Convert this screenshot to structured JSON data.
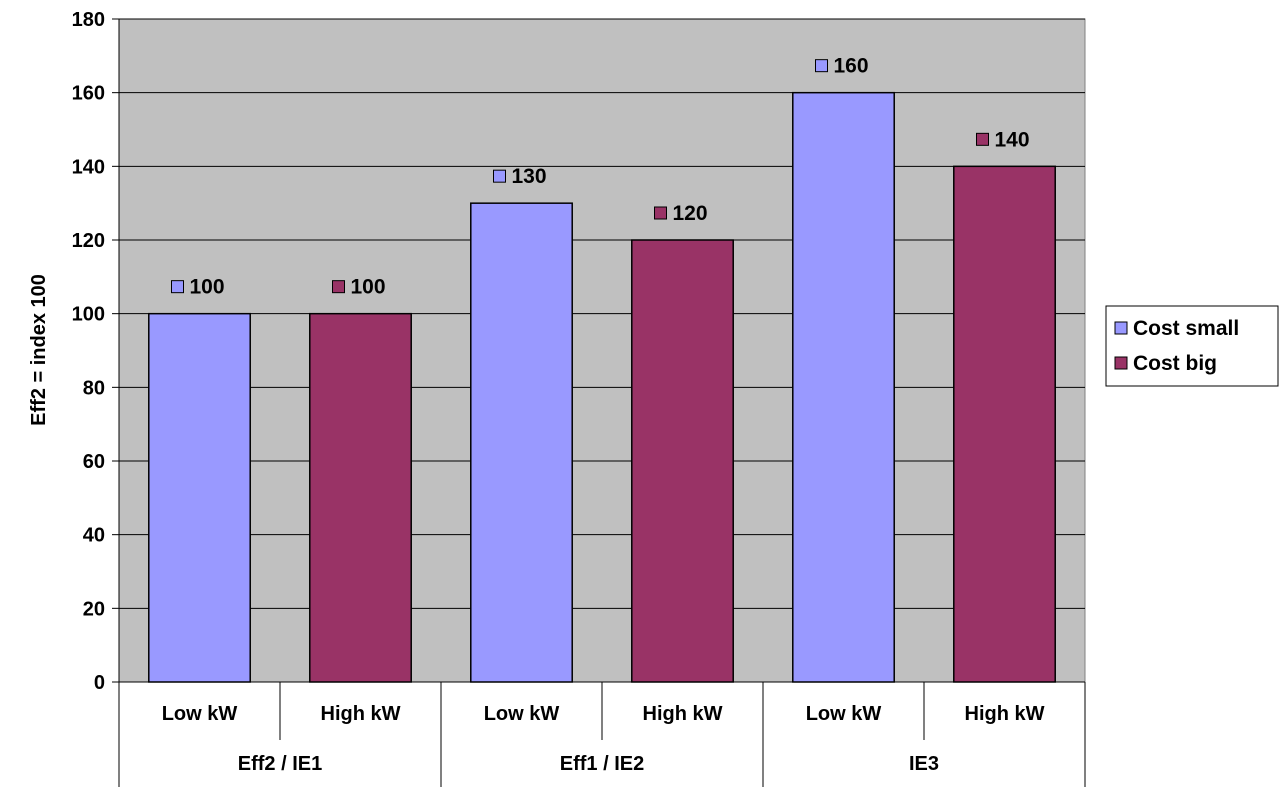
{
  "chart_data": {
    "type": "bar",
    "title": "",
    "xlabel": "",
    "ylabel": "Eff2 = index 100",
    "ylim": [
      0,
      180
    ],
    "y_ticks": [
      0,
      20,
      40,
      60,
      80,
      100,
      120,
      140,
      160,
      180
    ],
    "grid": true,
    "legend_position": "right",
    "plot_background": "#C0C0C0",
    "categories": [
      "Low kW",
      "High kW",
      "Low kW",
      "High kW",
      "Low kW",
      "High kW"
    ],
    "groups": [
      {
        "label": "Eff2 / IE1",
        "span": 2
      },
      {
        "label": "Eff1 / IE2",
        "span": 2
      },
      {
        "label": "IE3",
        "span": 2
      }
    ],
    "series": [
      {
        "name": "Cost small",
        "color": "#9999FF",
        "values": [
          100,
          null,
          130,
          null,
          160,
          null
        ]
      },
      {
        "name": "Cost big",
        "color": "#993366",
        "values": [
          null,
          100,
          null,
          120,
          null,
          140
        ]
      }
    ]
  }
}
